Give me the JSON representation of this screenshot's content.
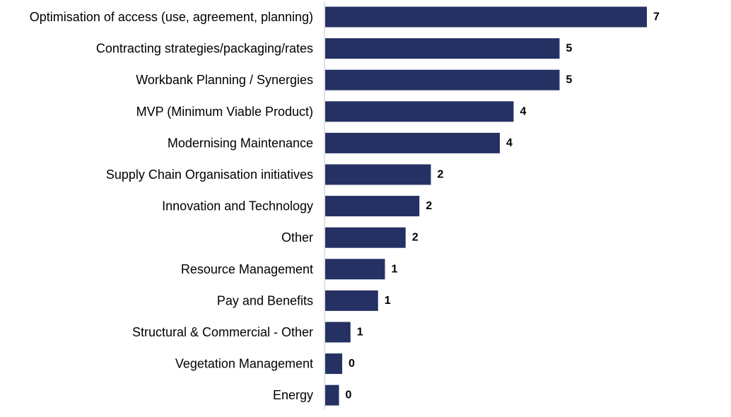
{
  "chart_data": {
    "type": "bar",
    "orientation": "horizontal",
    "categories": [
      "Optimisation of access (use, agreement, planning)",
      "Contracting strategies/packaging/rates",
      "Workbank Planning / Synergies",
      "MVP (Minimum Viable Product)",
      "Modernising Maintenance",
      "Supply Chain Organisation initiatives",
      "Innovation and Technology",
      "Other",
      "Resource Management",
      "Pay and Benefits",
      "Structural & Commercial - Other",
      "Vegetation Management",
      "Energy"
    ],
    "values": [
      7,
      5,
      5,
      4,
      4,
      2,
      2,
      2,
      1,
      1,
      1,
      0,
      0
    ],
    "bar_lengths": [
      7,
      5.1,
      5.1,
      4.1,
      3.8,
      2.3,
      2.05,
      1.75,
      1.3,
      1.15,
      0.55,
      0.37,
      0.3
    ],
    "value_labels": [
      "7",
      "5",
      "5",
      "4",
      "4",
      "2",
      "2",
      "2",
      "1",
      "1",
      "1",
      "0",
      "0"
    ],
    "bar_color": "#253163",
    "axis_color": "#d9d9d9",
    "grid": false,
    "legend": "none"
  }
}
